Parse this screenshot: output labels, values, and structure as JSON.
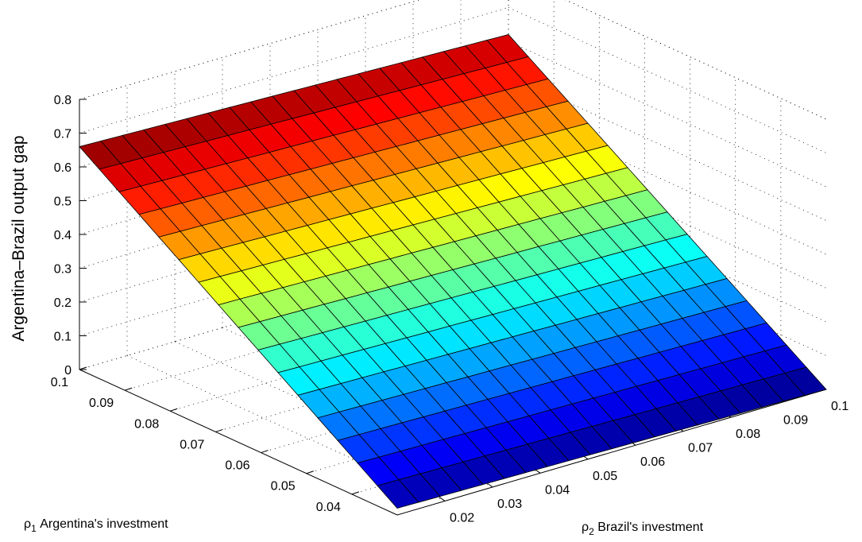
{
  "chart_data": {
    "type": "surface",
    "zlabel": "Argentina–Brazil output gap",
    "rho1_label": {
      "symbol": "ρ",
      "sub": "1",
      "text": " Argentina's investment"
    },
    "rho2_label": {
      "symbol": "ρ",
      "sub": "2",
      "text": " Brazil's investment"
    },
    "rho1_range": [
      0.03,
      0.1
    ],
    "rho2_range": [
      0.01,
      0.1
    ],
    "zlim": [
      0,
      0.8
    ],
    "rho1_ticks": [
      "0.04",
      "0.05",
      "0.06",
      "0.07",
      "0.08",
      "0.09",
      "0.1"
    ],
    "rho2_ticks": [
      "0.02",
      "0.03",
      "0.04",
      "0.05",
      "0.06",
      "0.07",
      "0.08",
      "0.09",
      "0.1"
    ],
    "z_ticks": [
      "0",
      "0.1",
      "0.2",
      "0.3",
      "0.4",
      "0.5",
      "0.6",
      "0.7",
      "0.8"
    ],
    "grid": true,
    "colormap": "jet",
    "mesh_size": [
      16,
      20
    ],
    "corner_values": {
      "rho1_max_rho2_min": 0.66,
      "rho1_max_rho2_max": 0.62,
      "rho1_min_rho2_min": 0.02,
      "rho1_min_rho2_max": 0.0
    }
  }
}
